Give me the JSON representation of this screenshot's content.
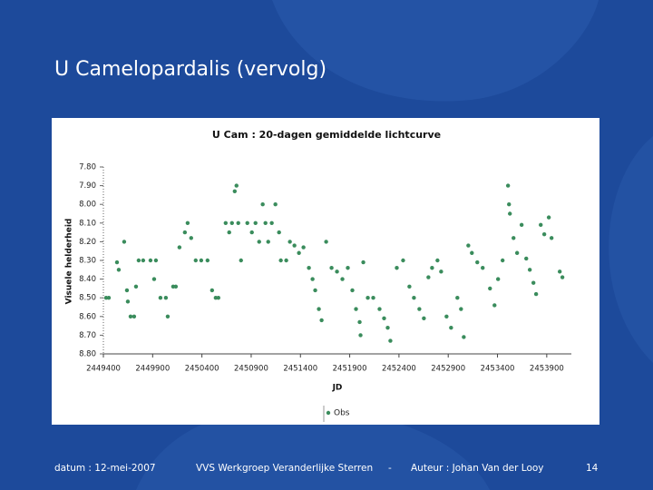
{
  "slide_title": "U Camelopardalis (vervolg)",
  "chart_data": {
    "type": "scatter",
    "title": "U Cam : 20-dagen gemiddelde lichtcurve",
    "x_label": "JD",
    "y_label": "Visuele helderheid",
    "y_inverted": true,
    "grid": false,
    "legend": "bottom",
    "xlim": [
      2449400,
      2454150
    ],
    "xticks": [
      2449400,
      2449900,
      2450400,
      2450900,
      2451400,
      2451900,
      2452400,
      2452900,
      2453400,
      2453900
    ],
    "ylim": [
      7.8,
      8.8
    ],
    "yticks": [
      {
        "value": 7.8,
        "label": "7.80"
      },
      {
        "value": 7.9,
        "label": "7.90"
      },
      {
        "value": 8.0,
        "label": "8.00"
      },
      {
        "value": 8.1,
        "label": "8.10"
      },
      {
        "value": 8.2,
        "label": "8.20"
      },
      {
        "value": 8.3,
        "label": "8.30"
      },
      {
        "value": 8.4,
        "label": "8.40"
      },
      {
        "value": 8.5,
        "label": "8.50"
      },
      {
        "value": 8.6,
        "label": "8.60"
      },
      {
        "value": 8.7,
        "label": "8.70"
      },
      {
        "value": 8.8,
        "label": "8.80"
      }
    ],
    "series": [
      {
        "name": "Obs",
        "color": "#3a8c5c",
        "x": [
          2449428,
          2449455,
          2449538,
          2449556,
          2449611,
          2449639,
          2449648,
          2449676,
          2449712,
          2449731,
          2449758,
          2449804,
          2449878,
          2449915,
          2449933,
          2449979,
          2450034,
          2450053,
          2450108,
          2450135,
          2450172,
          2450227,
          2450255,
          2450291,
          2450337,
          2450393,
          2450457,
          2450503,
          2450540,
          2450567,
          2450641,
          2450677,
          2450705,
          2450733,
          2450751,
          2450769,
          2450797,
          2450861,
          2450907,
          2450944,
          2450981,
          2451017,
          2451045,
          2451073,
          2451109,
          2451146,
          2451183,
          2451201,
          2451256,
          2451293,
          2451339,
          2451385,
          2451431,
          2451486,
          2451523,
          2451550,
          2451587,
          2451615,
          2451661,
          2451716,
          2451771,
          2451826,
          2451881,
          2451927,
          2451964,
          2452001,
          2452010,
          2452038,
          2452084,
          2452139,
          2452203,
          2452249,
          2452286,
          2452313,
          2452378,
          2452442,
          2452506,
          2452552,
          2452607,
          2452653,
          2452699,
          2452736,
          2452791,
          2452828,
          2452883,
          2452929,
          2452993,
          2453030,
          2453058,
          2453104,
          2453140,
          2453195,
          2453250,
          2453324,
          2453370,
          2453406,
          2453452,
          2453507,
          2453517,
          2453526,
          2453563,
          2453599,
          2453645,
          2453692,
          2453728,
          2453765,
          2453792,
          2453839,
          2453875,
          2453921,
          2453949,
          2454032,
          2454059
        ],
        "values": [
          8.5,
          8.5,
          8.31,
          8.35,
          8.2,
          8.46,
          8.52,
          8.6,
          8.6,
          8.44,
          8.3,
          8.3,
          8.3,
          8.4,
          8.3,
          8.5,
          8.5,
          8.6,
          8.44,
          8.44,
          8.23,
          8.15,
          8.1,
          8.18,
          8.3,
          8.3,
          8.3,
          8.46,
          8.5,
          8.5,
          8.1,
          8.15,
          8.1,
          7.93,
          7.9,
          8.1,
          8.3,
          8.1,
          8.15,
          8.1,
          8.2,
          8.0,
          8.1,
          8.2,
          8.1,
          8.0,
          8.15,
          8.3,
          8.3,
          8.2,
          8.22,
          8.26,
          8.23,
          8.34,
          8.4,
          8.46,
          8.56,
          8.62,
          8.2,
          8.34,
          8.36,
          8.4,
          8.34,
          8.46,
          8.56,
          8.63,
          8.7,
          8.31,
          8.5,
          8.5,
          8.56,
          8.61,
          8.66,
          8.73,
          8.34,
          8.3,
          8.44,
          8.5,
          8.56,
          8.61,
          8.39,
          8.34,
          8.3,
          8.36,
          8.6,
          8.66,
          8.5,
          8.56,
          8.71,
          8.22,
          8.26,
          8.31,
          8.34,
          8.45,
          8.54,
          8.4,
          8.3,
          7.9,
          8.0,
          8.05,
          8.18,
          8.26,
          8.11,
          8.29,
          8.35,
          8.42,
          8.48,
          8.11,
          8.16,
          8.07,
          8.18,
          8.36,
          8.39
        ]
      }
    ]
  },
  "footer": {
    "date": "datum : 12-mei-2007",
    "organisation": "VVS Werkgroep Veranderlijke Sterren",
    "separator": "-",
    "author": "Auteur : Johan Van der Looy",
    "page": "14"
  }
}
